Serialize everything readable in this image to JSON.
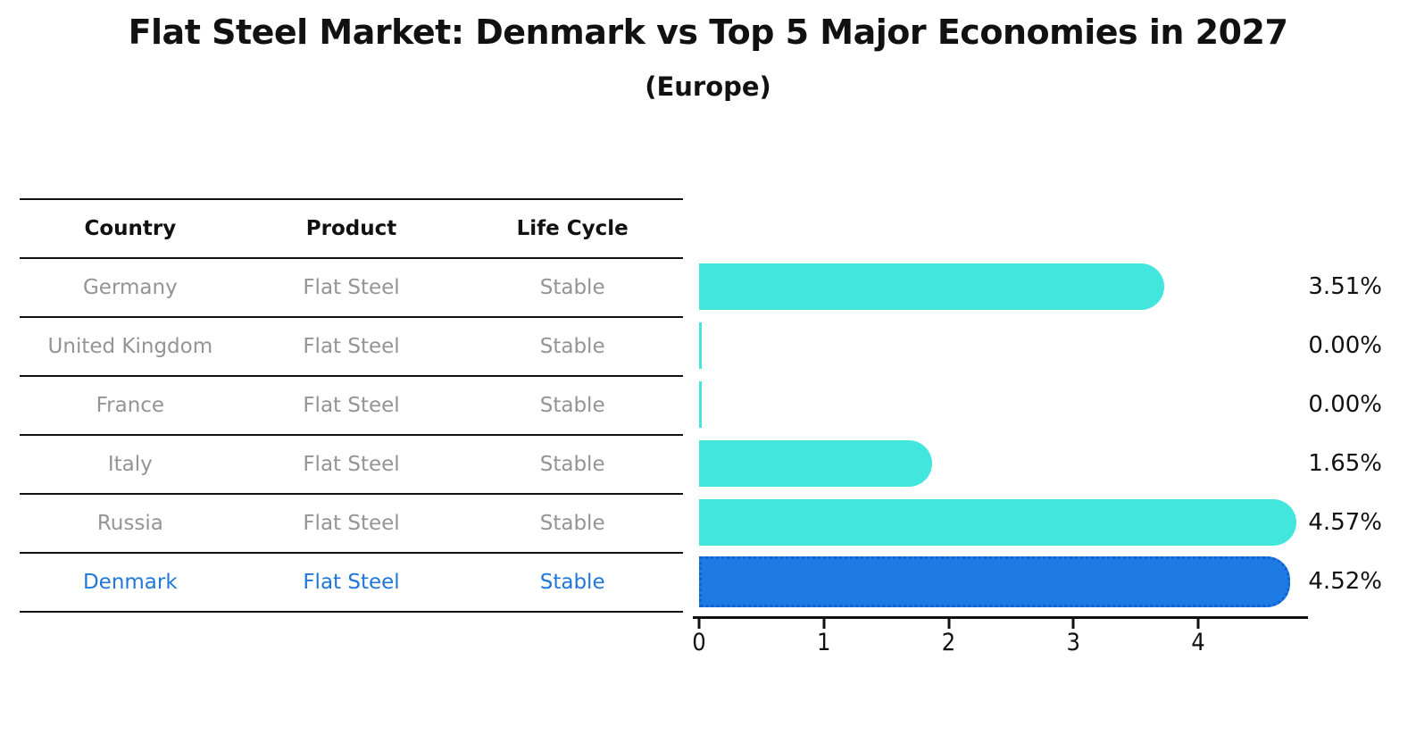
{
  "title": "Flat Steel Market: Denmark vs Top 5 Major Economies in 2027",
  "subtitle": "(Europe)",
  "table": {
    "headers": [
      "Country",
      "Product",
      "Life Cycle"
    ],
    "rows": [
      {
        "country": "Germany",
        "product": "Flat Steel",
        "life_cycle": "Stable",
        "highlighted": false
      },
      {
        "country": "United Kingdom",
        "product": "Flat Steel",
        "life_cycle": "Stable",
        "highlighted": false
      },
      {
        "country": "France",
        "product": "Flat Steel",
        "life_cycle": "Stable",
        "highlighted": false
      },
      {
        "country": "Italy",
        "product": "Flat Steel",
        "life_cycle": "Stable",
        "highlighted": false
      },
      {
        "country": "Russia",
        "product": "Flat Steel",
        "life_cycle": "Stable",
        "highlighted": false
      },
      {
        "country": "Denmark",
        "product": "Flat Steel",
        "life_cycle": "Stable",
        "highlighted": true
      }
    ]
  },
  "chart_data": {
    "type": "bar",
    "orientation": "horizontal",
    "title": "Flat Steel Market: Denmark vs Top 5 Major Economies in 2027",
    "subtitle": "(Europe)",
    "categories": [
      "Germany",
      "United Kingdom",
      "France",
      "Italy",
      "Russia",
      "Denmark"
    ],
    "values": [
      3.51,
      0.0,
      0.0,
      1.65,
      4.57,
      4.52
    ],
    "value_labels": [
      "3.51%",
      "0.00%",
      "0.00%",
      "1.65%",
      "4.57%",
      "4.52%"
    ],
    "xlabel": "",
    "ylabel": "",
    "xlim": [
      0,
      4.88
    ],
    "x_ticks": [
      "0",
      "1",
      "2",
      "3",
      "4"
    ],
    "grid": false,
    "legend": "none",
    "highlight_index": 5,
    "colors": {
      "bar": "#43E6DC",
      "highlight_bar": "#1E7BE4",
      "highlight_bar_border": "#1060D6",
      "highlight_text": "#1F77D9",
      "row_text": "#949494",
      "axis_and_titles": "#111111",
      "background": "#FFFFFF"
    }
  }
}
